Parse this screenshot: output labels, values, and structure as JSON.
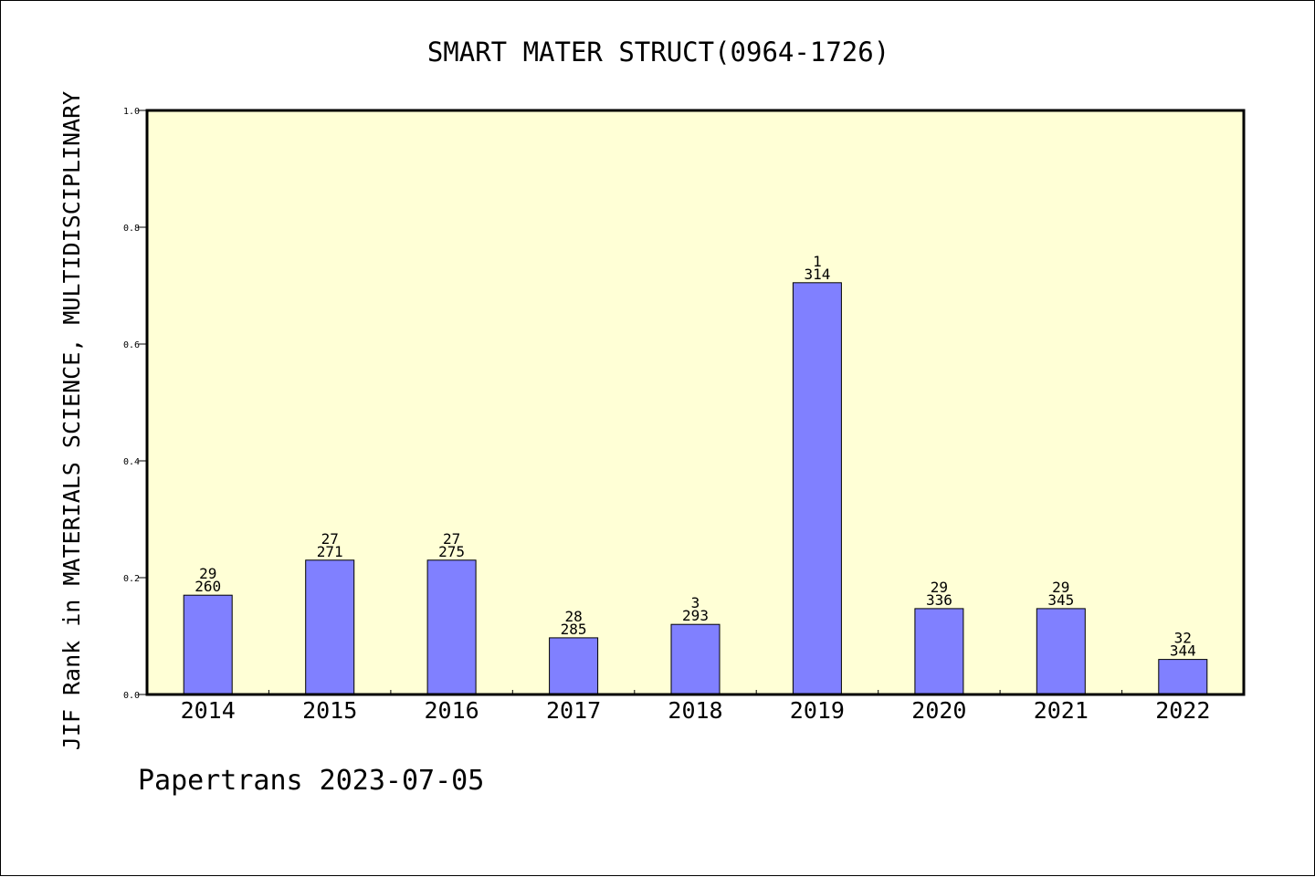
{
  "chart_data": {
    "type": "bar",
    "title": "SMART MATER STRUCT(0964-1726)",
    "ylabel": "JIF Rank in MATERIALS SCIENCE, MULTIDISCIPLINARY",
    "xlabel": "",
    "ylim": [
      0,
      1.0
    ],
    "yticks": [
      "0.0",
      "0.2",
      "0.4",
      "0.6",
      "0.8",
      "1.0"
    ],
    "categories": [
      "2014",
      "2015",
      "2016",
      "2017",
      "2018",
      "2019",
      "2020",
      "2021",
      "2022"
    ],
    "values": [
      0.17,
      0.23,
      0.23,
      0.097,
      0.12,
      0.705,
      0.147,
      0.147,
      0.06
    ],
    "rank_labels": [
      "29",
      "27",
      "27",
      "28",
      "3",
      "1",
      "29",
      "29",
      "32"
    ],
    "total_labels": [
      "260",
      "271",
      "275",
      "285",
      "293",
      "314",
      "336",
      "345",
      "344"
    ],
    "grid": false,
    "legend": "none"
  },
  "footer": "Papertrans 2023-07-05",
  "colors": {
    "plot_background": "#ffffd6",
    "bar_fill": "#8080ff",
    "bar_stroke": "#000000",
    "axis": "#000000"
  }
}
